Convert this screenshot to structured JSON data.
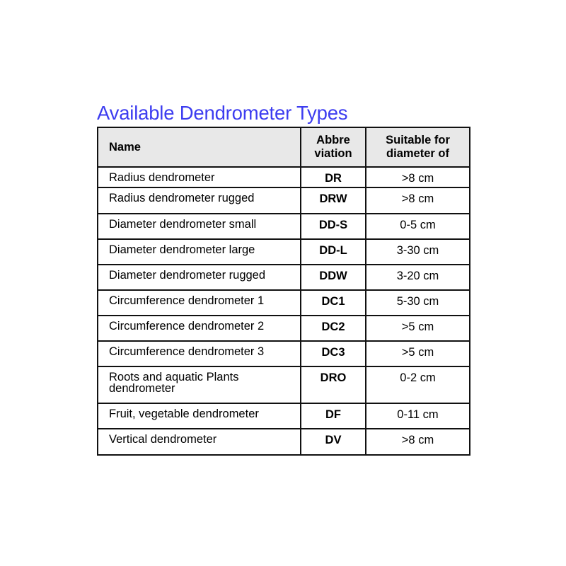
{
  "title": "Available Dendrometer Types",
  "table": {
    "headers": [
      "Name",
      "Abbre viation",
      "Suitable for diameter of"
    ],
    "header_lines": {
      "col1": [
        "Abbre",
        "viation"
      ],
      "col2": [
        "Suitable for",
        "diameter of"
      ]
    },
    "rows": [
      {
        "name": "Radius dendrometer",
        "abbr": "DR",
        "diameter": ">8 cm"
      },
      {
        "name": "Radius dendrometer rugged",
        "abbr": "DRW",
        "diameter": ">8 cm"
      },
      {
        "name": "Diameter dendrometer small",
        "abbr": "DD-S",
        "diameter": "0-5 cm"
      },
      {
        "name": "Diameter dendrometer large",
        "abbr": "DD-L",
        "diameter": "3-30 cm"
      },
      {
        "name": "Diameter dendrometer rugged",
        "abbr": "DDW",
        "diameter": "3-20 cm"
      },
      {
        "name": "Circumference dendrometer 1",
        "abbr": "DC1",
        "diameter": "5-30 cm"
      },
      {
        "name": "Circumference dendrometer 2",
        "abbr": "DC2",
        "diameter": ">5 cm"
      },
      {
        "name": "Circumference dendrometer 3",
        "abbr": "DC3",
        "diameter": ">5 cm"
      },
      {
        "name": "Roots and aquatic Plants dendrometer",
        "abbr": "DRO",
        "diameter": "0-2 cm"
      },
      {
        "name": "Fruit, vegetable dendrometer",
        "abbr": "DF",
        "diameter": "0-11 cm"
      },
      {
        "name": "Vertical dendrometer",
        "abbr": "DV",
        "diameter": ">8 cm"
      }
    ]
  },
  "colors": {
    "title": "#3d3df0",
    "header_bg": "#e8e8e8",
    "border": "#111111"
  }
}
